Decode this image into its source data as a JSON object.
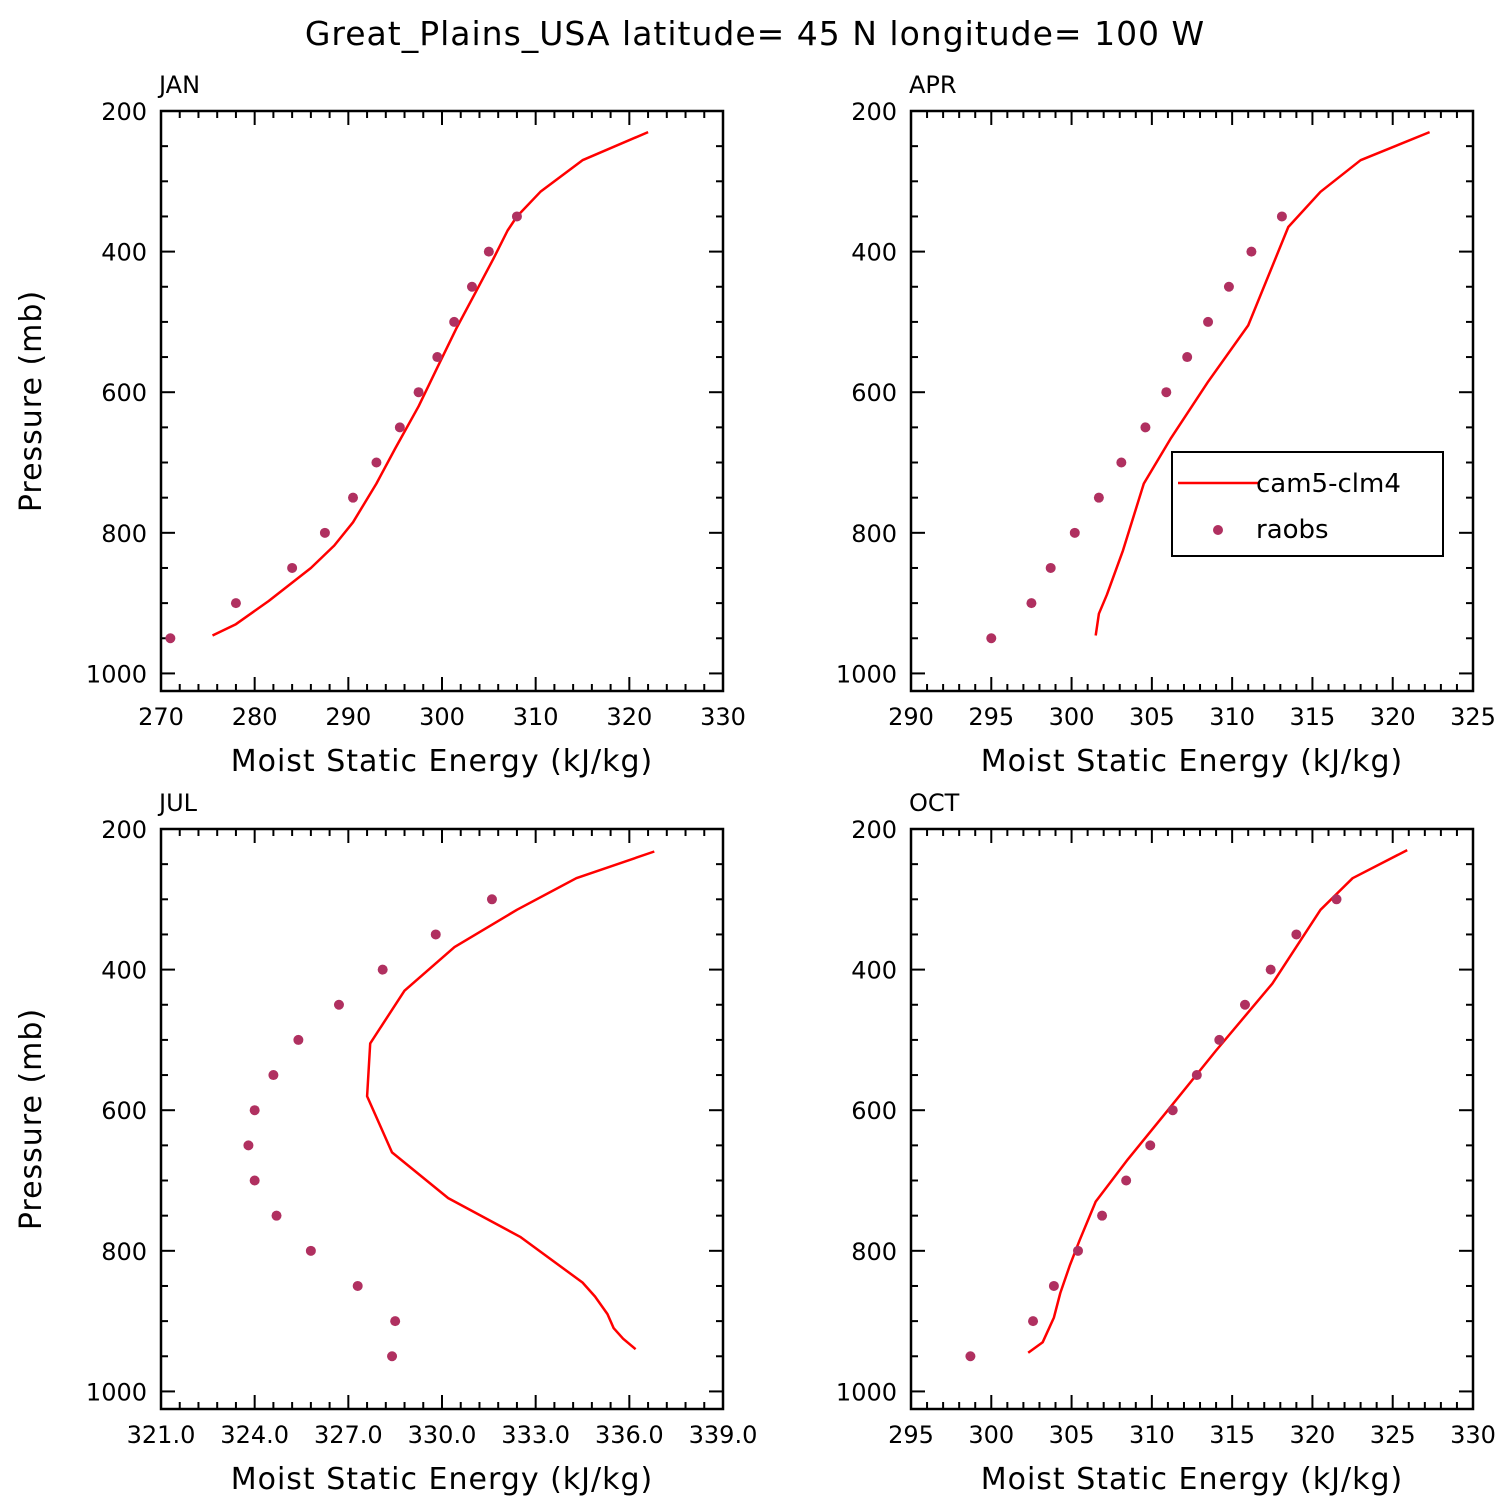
{
  "title": "Great_Plains_USA  latitude= 45 N longitude= 100 W",
  "legend": {
    "model_label": "cam5-clm4",
    "obs_label": "raobs"
  },
  "colors": {
    "model_line": "#ff0000",
    "obs_marker": "#b03060",
    "frame": "#000000"
  },
  "chart_data": [
    {
      "type": "line",
      "panel_label": "JAN",
      "xlabel": "Moist Static Energy (kJ/kg)",
      "ylabel": "Pressure (mb)",
      "xlim": [
        270,
        330
      ],
      "ylim": [
        1025,
        200
      ],
      "y_inverted": true,
      "xticks": [
        "270",
        "280",
        "290",
        "300",
        "310",
        "320",
        "330"
      ],
      "yticks": [
        "200",
        "400",
        "600",
        "800",
        "1000"
      ],
      "has_legend": false,
      "series": [
        {
          "name": "cam5-clm4",
          "style": "line",
          "x": [
            275.5,
            278.0,
            281.5,
            286.0,
            288.5,
            290.5,
            293.0,
            295.0,
            297.5,
            299.5,
            301.5,
            303.5,
            305.5,
            307.0,
            308.0,
            310.5,
            315.0,
            322.0
          ],
          "y": [
            946,
            930,
            897,
            850,
            818,
            785,
            730,
            680,
            620,
            565,
            510,
            460,
            410,
            370,
            350,
            315,
            270,
            230
          ]
        },
        {
          "name": "raobs",
          "style": "marker",
          "x": [
            271.0,
            278.0,
            284.0,
            287.5,
            290.5,
            293.0,
            295.5,
            297.5,
            299.5,
            301.3,
            303.2,
            305.0,
            308.0
          ],
          "y": [
            950,
            900,
            850,
            800,
            750,
            700,
            650,
            600,
            550,
            500,
            450,
            400,
            350
          ]
        }
      ]
    },
    {
      "type": "line",
      "panel_label": "APR",
      "xlabel": "Moist Static Energy (kJ/kg)",
      "ylabel": "",
      "xlim": [
        290,
        325
      ],
      "ylim": [
        1025,
        200
      ],
      "y_inverted": true,
      "xticks": [
        "290",
        "295",
        "300",
        "305",
        "310",
        "315",
        "320",
        "325"
      ],
      "yticks": [
        "200",
        "400",
        "600",
        "800",
        "1000"
      ],
      "has_legend": true,
      "series": [
        {
          "name": "cam5-clm4",
          "style": "line",
          "x": [
            301.5,
            301.7,
            302.2,
            303.2,
            304.5,
            306.2,
            308.5,
            311.0,
            313.5,
            315.5,
            318.0,
            322.3
          ],
          "y": [
            946,
            915,
            888,
            825,
            730,
            665,
            585,
            505,
            365,
            315,
            270,
            230
          ]
        },
        {
          "name": "raobs",
          "style": "marker",
          "x": [
            295.0,
            297.5,
            298.7,
            300.2,
            301.7,
            303.1,
            304.6,
            305.9,
            307.2,
            308.5,
            309.8,
            311.2,
            313.1
          ],
          "y": [
            950,
            900,
            850,
            800,
            750,
            700,
            650,
            600,
            550,
            500,
            450,
            400,
            350
          ]
        }
      ]
    },
    {
      "type": "line",
      "panel_label": "JUL",
      "xlabel": "Moist Static Energy (kJ/kg)",
      "ylabel": "Pressure (mb)",
      "xlim": [
        321,
        339
      ],
      "ylim": [
        1025,
        200
      ],
      "y_inverted": true,
      "xticks": [
        "321.0",
        "324.0",
        "327.0",
        "330.0",
        "333.0",
        "336.0",
        "339.0"
      ],
      "yticks": [
        "200",
        "400",
        "600",
        "800",
        "1000"
      ],
      "has_legend": false,
      "series": [
        {
          "name": "cam5-clm4",
          "style": "line",
          "x": [
            336.2,
            335.8,
            335.5,
            335.3,
            334.9,
            334.5,
            332.5,
            330.2,
            328.4,
            327.6,
            327.7,
            328.8,
            330.4,
            332.4,
            334.3,
            336.8
          ],
          "y": [
            940,
            925,
            910,
            890,
            865,
            845,
            780,
            725,
            660,
            580,
            505,
            430,
            368,
            315,
            270,
            232
          ]
        },
        {
          "name": "raobs",
          "style": "marker",
          "x": [
            328.4,
            328.5,
            327.3,
            325.8,
            324.7,
            324.0,
            323.8,
            324.0,
            324.6,
            325.4,
            326.7,
            328.1,
            329.8,
            331.6
          ],
          "y": [
            950,
            900,
            850,
            800,
            750,
            700,
            650,
            600,
            550,
            500,
            450,
            400,
            350,
            300
          ]
        }
      ]
    },
    {
      "type": "line",
      "panel_label": "OCT",
      "xlabel": "Moist Static Energy (kJ/kg)",
      "ylabel": "",
      "xlim": [
        295,
        330
      ],
      "ylim": [
        1025,
        200
      ],
      "y_inverted": true,
      "xticks": [
        "295",
        "300",
        "305",
        "310",
        "315",
        "320",
        "325",
        "330"
      ],
      "yticks": [
        "200",
        "400",
        "600",
        "800",
        "1000"
      ],
      "has_legend": false,
      "series": [
        {
          "name": "cam5-clm4",
          "style": "line",
          "x": [
            302.3,
            303.2,
            303.9,
            304.3,
            304.9,
            305.5,
            306.5,
            308.5,
            311.0,
            314.0,
            317.5,
            320.5,
            322.5,
            325.9
          ],
          "y": [
            945,
            930,
            895,
            860,
            820,
            785,
            730,
            670,
            600,
            515,
            420,
            315,
            270,
            230
          ]
        },
        {
          "name": "raobs",
          "style": "marker",
          "x": [
            298.7,
            302.6,
            303.9,
            305.4,
            306.9,
            308.4,
            309.9,
            311.3,
            312.8,
            314.2,
            315.8,
            317.4,
            319.0,
            321.5
          ],
          "y": [
            950,
            900,
            850,
            800,
            750,
            700,
            650,
            600,
            550,
            500,
            450,
            400,
            350,
            300
          ]
        }
      ]
    }
  ]
}
